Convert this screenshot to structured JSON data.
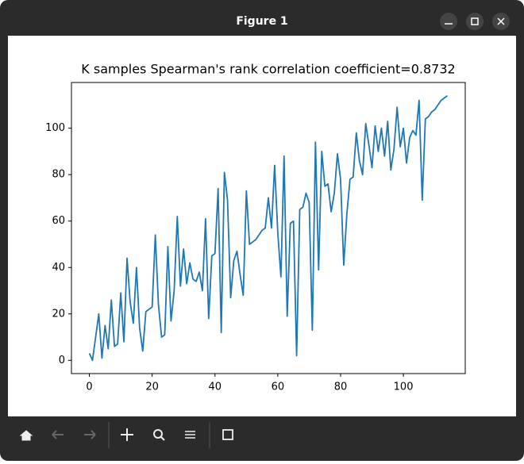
{
  "window": {
    "title": "Figure 1"
  },
  "chart_data": {
    "type": "line",
    "title": "K samples  Spearman's rank correlation coefficient=0.8732",
    "x": [
      0,
      1,
      2,
      3,
      4,
      5,
      6,
      7,
      8,
      9,
      10,
      11,
      12,
      13,
      14,
      15,
      16,
      17,
      18,
      19,
      20,
      21,
      22,
      23,
      24,
      25,
      26,
      27,
      28,
      29,
      30,
      31,
      32,
      33,
      34,
      35,
      36,
      37,
      38,
      39,
      40,
      41,
      42,
      43,
      44,
      45,
      46,
      47,
      48,
      49,
      50,
      51,
      52,
      53,
      54,
      55,
      56,
      57,
      58,
      59,
      60,
      61,
      62,
      63,
      64,
      65,
      66,
      67,
      68,
      69,
      70,
      71,
      72,
      73,
      74,
      75,
      76,
      77,
      78,
      79,
      80,
      81,
      82,
      83,
      84,
      85,
      86,
      87,
      88,
      89,
      90,
      91,
      92,
      93,
      94,
      95,
      96,
      97,
      98,
      99,
      100,
      101,
      102,
      103,
      104,
      105,
      106,
      107,
      108,
      109,
      110,
      111,
      112,
      113,
      114
    ],
    "values": [
      3,
      0,
      10,
      20,
      1,
      15,
      5,
      26,
      6,
      7,
      29,
      8,
      44,
      25,
      16,
      40,
      14,
      4,
      21,
      22,
      23,
      54,
      24,
      10,
      11,
      49,
      17,
      30,
      62,
      32,
      48,
      33,
      42,
      35,
      34,
      38,
      30,
      61,
      18,
      45,
      46,
      74,
      12,
      81,
      69,
      27,
      43,
      47,
      37,
      28,
      73,
      50,
      51,
      52,
      54,
      56,
      57,
      70,
      57,
      84,
      55,
      36,
      88,
      19,
      59,
      60,
      2,
      65,
      66,
      72,
      68,
      13,
      94,
      39,
      90,
      75,
      76,
      64,
      72,
      89,
      78,
      41,
      63,
      78,
      79,
      98,
      86,
      80,
      102,
      93,
      83,
      101,
      90,
      100,
      88,
      103,
      82,
      91,
      109,
      92,
      100,
      85,
      96,
      99,
      97,
      112,
      69,
      104,
      105,
      107,
      108,
      110,
      112,
      113,
      114
    ],
    "color": "#1f77b4",
    "xlim": [
      -5.7,
      119.7
    ],
    "xticks": [
      0,
      20,
      40,
      60,
      80,
      100
    ],
    "ylim": [
      -5.7,
      119.7
    ],
    "yticks": [
      0,
      20,
      40,
      60,
      80,
      100
    ]
  }
}
